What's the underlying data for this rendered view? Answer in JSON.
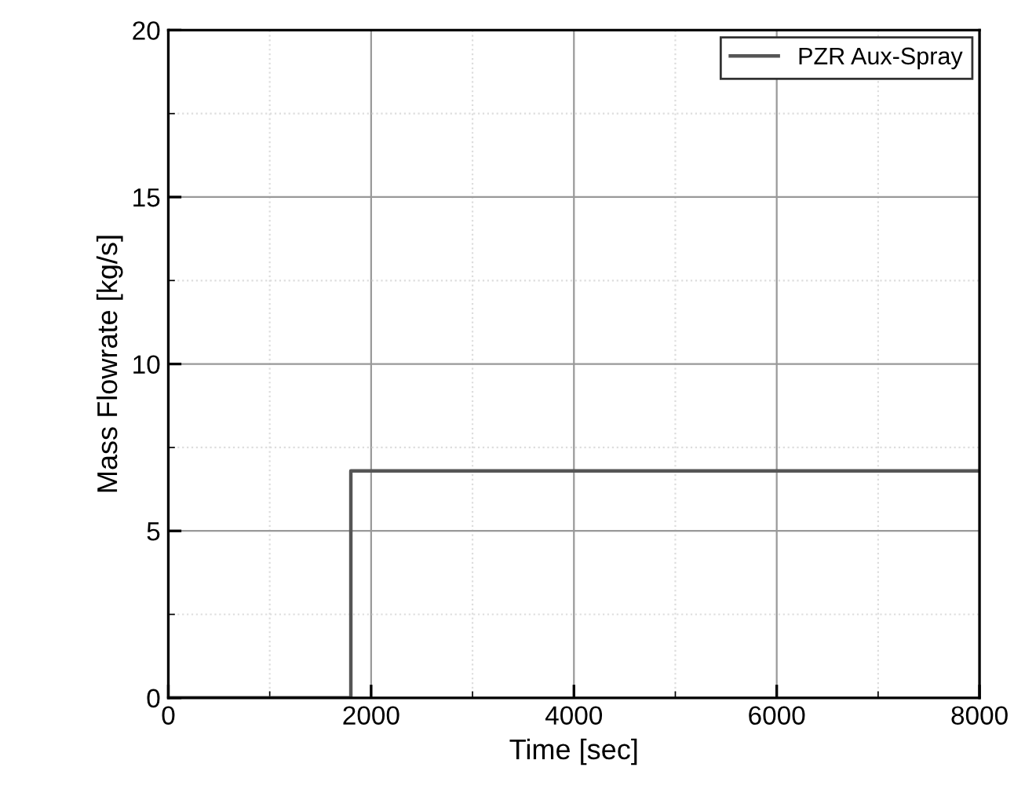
{
  "chart_data": {
    "type": "step",
    "xlabel": "Time [sec]",
    "ylabel": "Mass Flowrate [kg/s]",
    "series": [
      {
        "name": "PZR Aux-Spray",
        "color": "#555555",
        "x": [
          0,
          1800,
          8000
        ],
        "values": [
          0,
          6.8,
          6.8
        ]
      }
    ],
    "xlim": [
      0,
      8000
    ],
    "xticks": [
      0,
      2000,
      4000,
      6000,
      8000
    ],
    "ylim": [
      0,
      20
    ],
    "yticks": [
      0,
      5,
      10,
      15,
      20
    ],
    "grid": true,
    "legend": "top right",
    "marker": "none",
    "line_style": "solid"
  }
}
